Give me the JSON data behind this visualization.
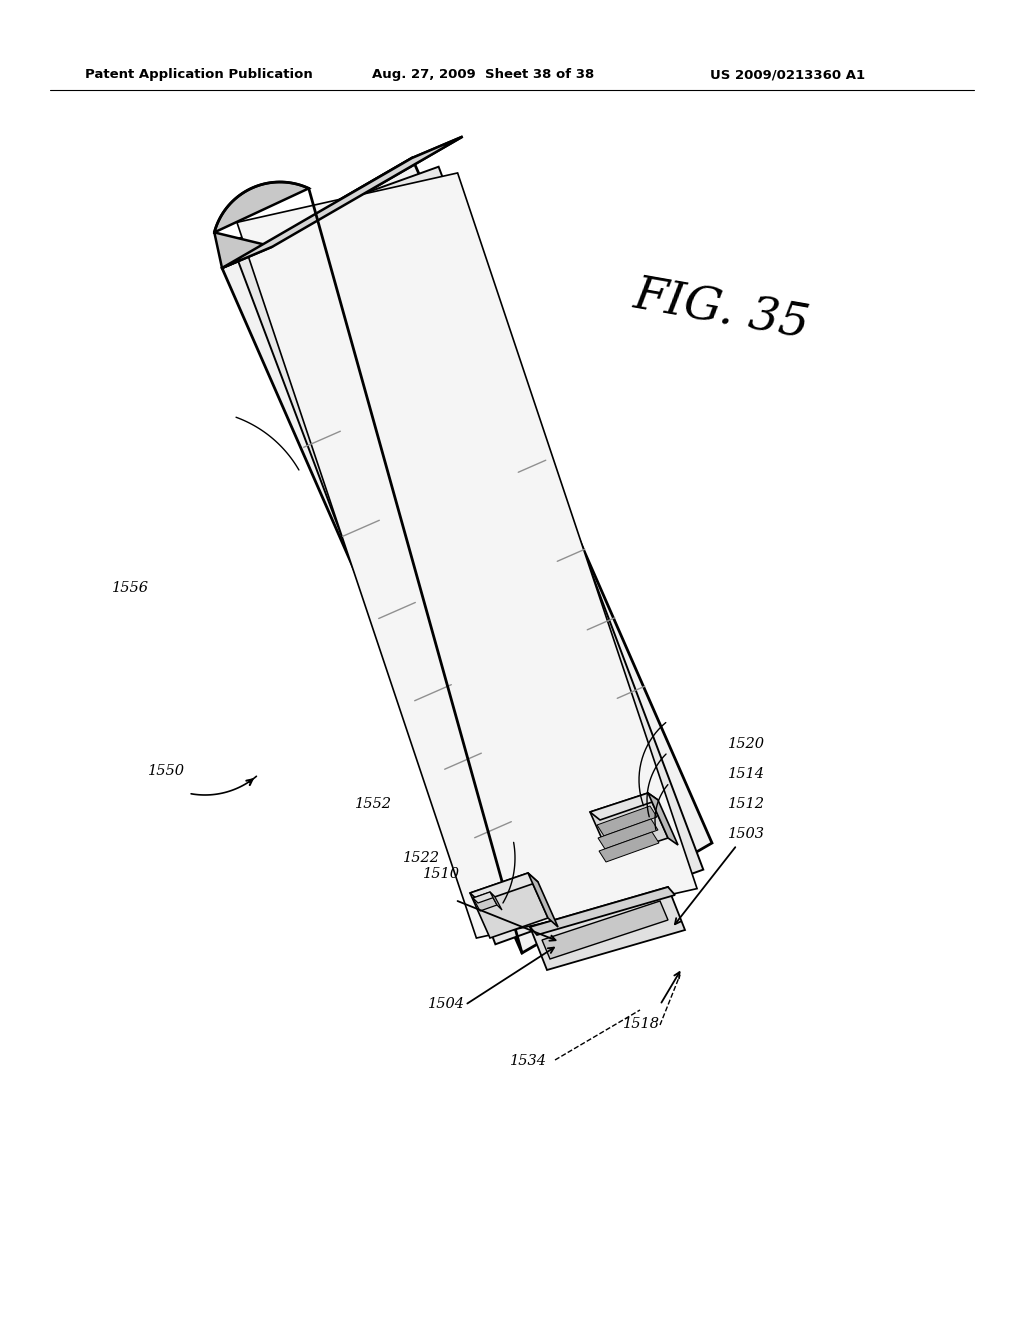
{
  "background_color": "#ffffff",
  "header_left": "Patent Application Publication",
  "header_mid": "Aug. 27, 2009  Sheet 38 of 38",
  "header_right": "US 2009/0213360 A1",
  "fig_label": "FIG. 35"
}
